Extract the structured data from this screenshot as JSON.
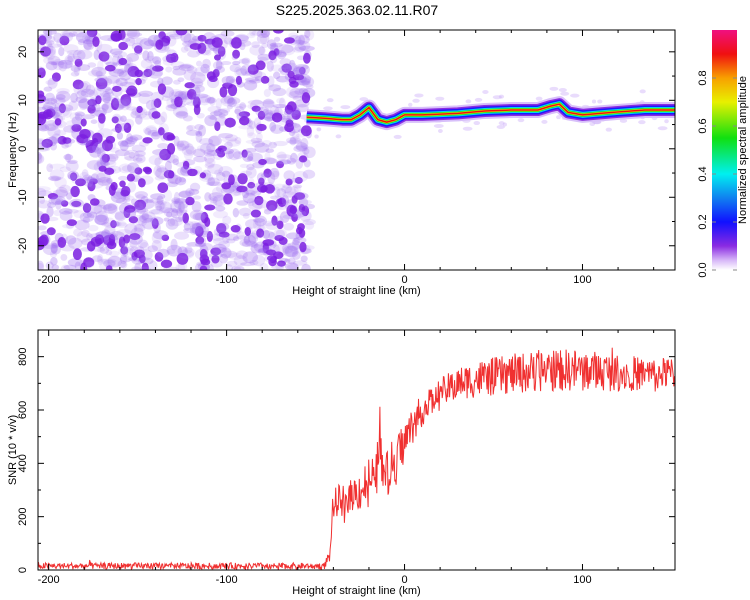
{
  "title": "S225.2025.363.02.11.R07",
  "colors": {
    "snr_line": "#f03030",
    "noise": "#8a2be2",
    "axis": "#000000"
  },
  "chart_data": [
    {
      "type": "heatmap",
      "title": "S225.2025.363.02.11.R07",
      "xlabel": "Height of straight line (km)",
      "ylabel": "Frequency (Hz)",
      "xlim": [
        -206,
        152
      ],
      "ylim": [
        -25,
        24.5
      ],
      "xticks": [
        -200,
        -100,
        0,
        100
      ],
      "yticks": [
        -20,
        -10,
        0,
        10,
        20
      ],
      "noise_region_x": [
        -206,
        -53
      ],
      "ridge": {
        "x": [
          -55,
          -45,
          -35,
          -30,
          -25,
          -20,
          -15,
          -10,
          -5,
          0,
          10,
          30,
          45,
          60,
          75,
          82,
          87,
          92,
          100,
          110,
          120,
          135,
          152
        ],
        "freq": [
          6.5,
          6.3,
          6,
          6,
          7,
          8.5,
          6,
          5.5,
          6,
          7,
          7,
          7.3,
          7.8,
          8,
          8,
          8.8,
          9.2,
          7.5,
          7,
          7.3,
          7.6,
          8,
          8
        ]
      },
      "colorbar": {
        "label": "Normalized spectral amplitude",
        "ticks": [
          "0.0",
          "0.2",
          "0.4",
          "0.6",
          "0.8"
        ],
        "range": [
          0,
          1
        ]
      }
    },
    {
      "type": "line",
      "xlabel": "Height of straight line (km)",
      "ylabel": "SNR (10 * v/v)",
      "xlim": [
        -206,
        152
      ],
      "ylim": [
        0,
        900
      ],
      "xticks": [
        -200,
        -100,
        0,
        100
      ],
      "yticks": [
        0,
        200,
        400,
        600,
        800
      ],
      "series": [
        {
          "name": "SNR",
          "x": [
            -206,
            -45,
            -42,
            -40,
            -38,
            -35,
            -30,
            -25,
            -20,
            -15,
            -14,
            -13,
            -10,
            -5,
            0,
            5,
            10,
            20,
            30,
            40,
            60,
            80,
            100,
            120,
            140,
            152
          ],
          "y": [
            15,
            15,
            60,
            230,
            260,
            260,
            280,
            300,
            330,
            380,
            600,
            360,
            350,
            420,
            480,
            550,
            600,
            660,
            700,
            715,
            735,
            750,
            750,
            740,
            735,
            740
          ],
          "noise_amplitude": [
            12,
            12,
            30,
            60,
            60,
            60,
            60,
            80,
            100,
            110,
            60,
            110,
            100,
            90,
            80,
            70,
            60,
            60,
            60,
            70,
            75,
            80,
            80,
            70,
            60,
            60
          ]
        }
      ]
    }
  ]
}
